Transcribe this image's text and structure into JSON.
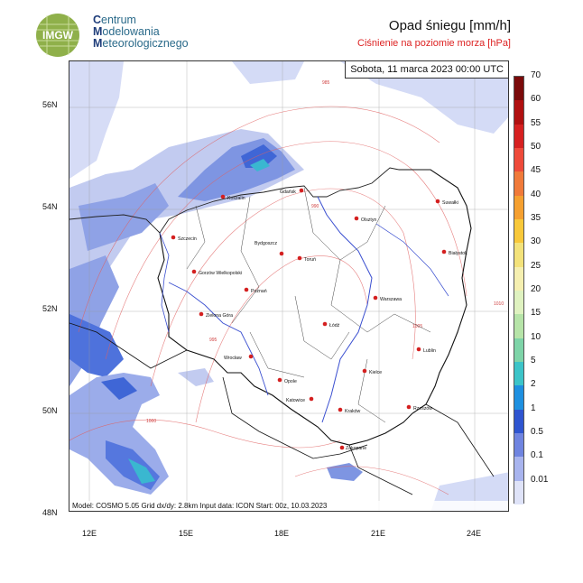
{
  "header": {
    "logo_text": "IMGW",
    "org_lines": [
      {
        "cap": "C",
        "rest": "entrum"
      },
      {
        "cap": "M",
        "rest": "odelowania"
      },
      {
        "cap": "M",
        "rest": "eteorologicznego"
      }
    ],
    "title": "Opad śniegu [mm/h]",
    "subtitle": "Ciśnienie na poziomie morza [hPa]"
  },
  "map": {
    "date": "Sobota, 11 marca 2023 00:00 UTC",
    "info": "Model: COSMO 5.05  Grid dx/dy: 2.8km  Input data: ICON  Start: 00z, 10.03.2023",
    "lat_labels": [
      "56N",
      "54N",
      "52N",
      "50N",
      "48N"
    ],
    "lon_labels": [
      "12E",
      "15E",
      "18E",
      "21E",
      "24E"
    ],
    "isobar_labels": [
      "985",
      "990",
      "995",
      "1000",
      "1005",
      "1010"
    ],
    "cities": [
      {
        "name": "Gdańsk"
      },
      {
        "name": "Koszalin"
      },
      {
        "name": "Suwałki"
      },
      {
        "name": "Olsztyn"
      },
      {
        "name": "Szczecin"
      },
      {
        "name": "Bydgoszcz"
      },
      {
        "name": "Toruń"
      },
      {
        "name": "Białystok"
      },
      {
        "name": "Gorzów Wielkopolski"
      },
      {
        "name": "Poznań"
      },
      {
        "name": "Warszawa"
      },
      {
        "name": "Zielona Góra"
      },
      {
        "name": "Łódź"
      },
      {
        "name": "Lublin"
      },
      {
        "name": "Wrocław"
      },
      {
        "name": "Opole"
      },
      {
        "name": "Kielce"
      },
      {
        "name": "Katowice"
      },
      {
        "name": "Kraków"
      },
      {
        "name": "Rzeszów"
      },
      {
        "name": "Zakopane"
      }
    ]
  },
  "colorbar": {
    "labels": [
      "70",
      "60",
      "55",
      "50",
      "45",
      "40",
      "35",
      "30",
      "25",
      "20",
      "15",
      "10",
      "5",
      "2",
      "1",
      "0.5",
      "0.1",
      "0.01"
    ],
    "colors": [
      "#7a0a0a",
      "#b01010",
      "#d62020",
      "#ee4a3a",
      "#f07a3a",
      "#f5a030",
      "#f8c83a",
      "#f3e27a",
      "#f5efb0",
      "#dff2c0",
      "#b6e4a8",
      "#7ed4a8",
      "#3cc4c8",
      "#1e90e0",
      "#2f55d0",
      "#6f84e0",
      "#a8b4ee",
      "#dfe3f8"
    ]
  }
}
